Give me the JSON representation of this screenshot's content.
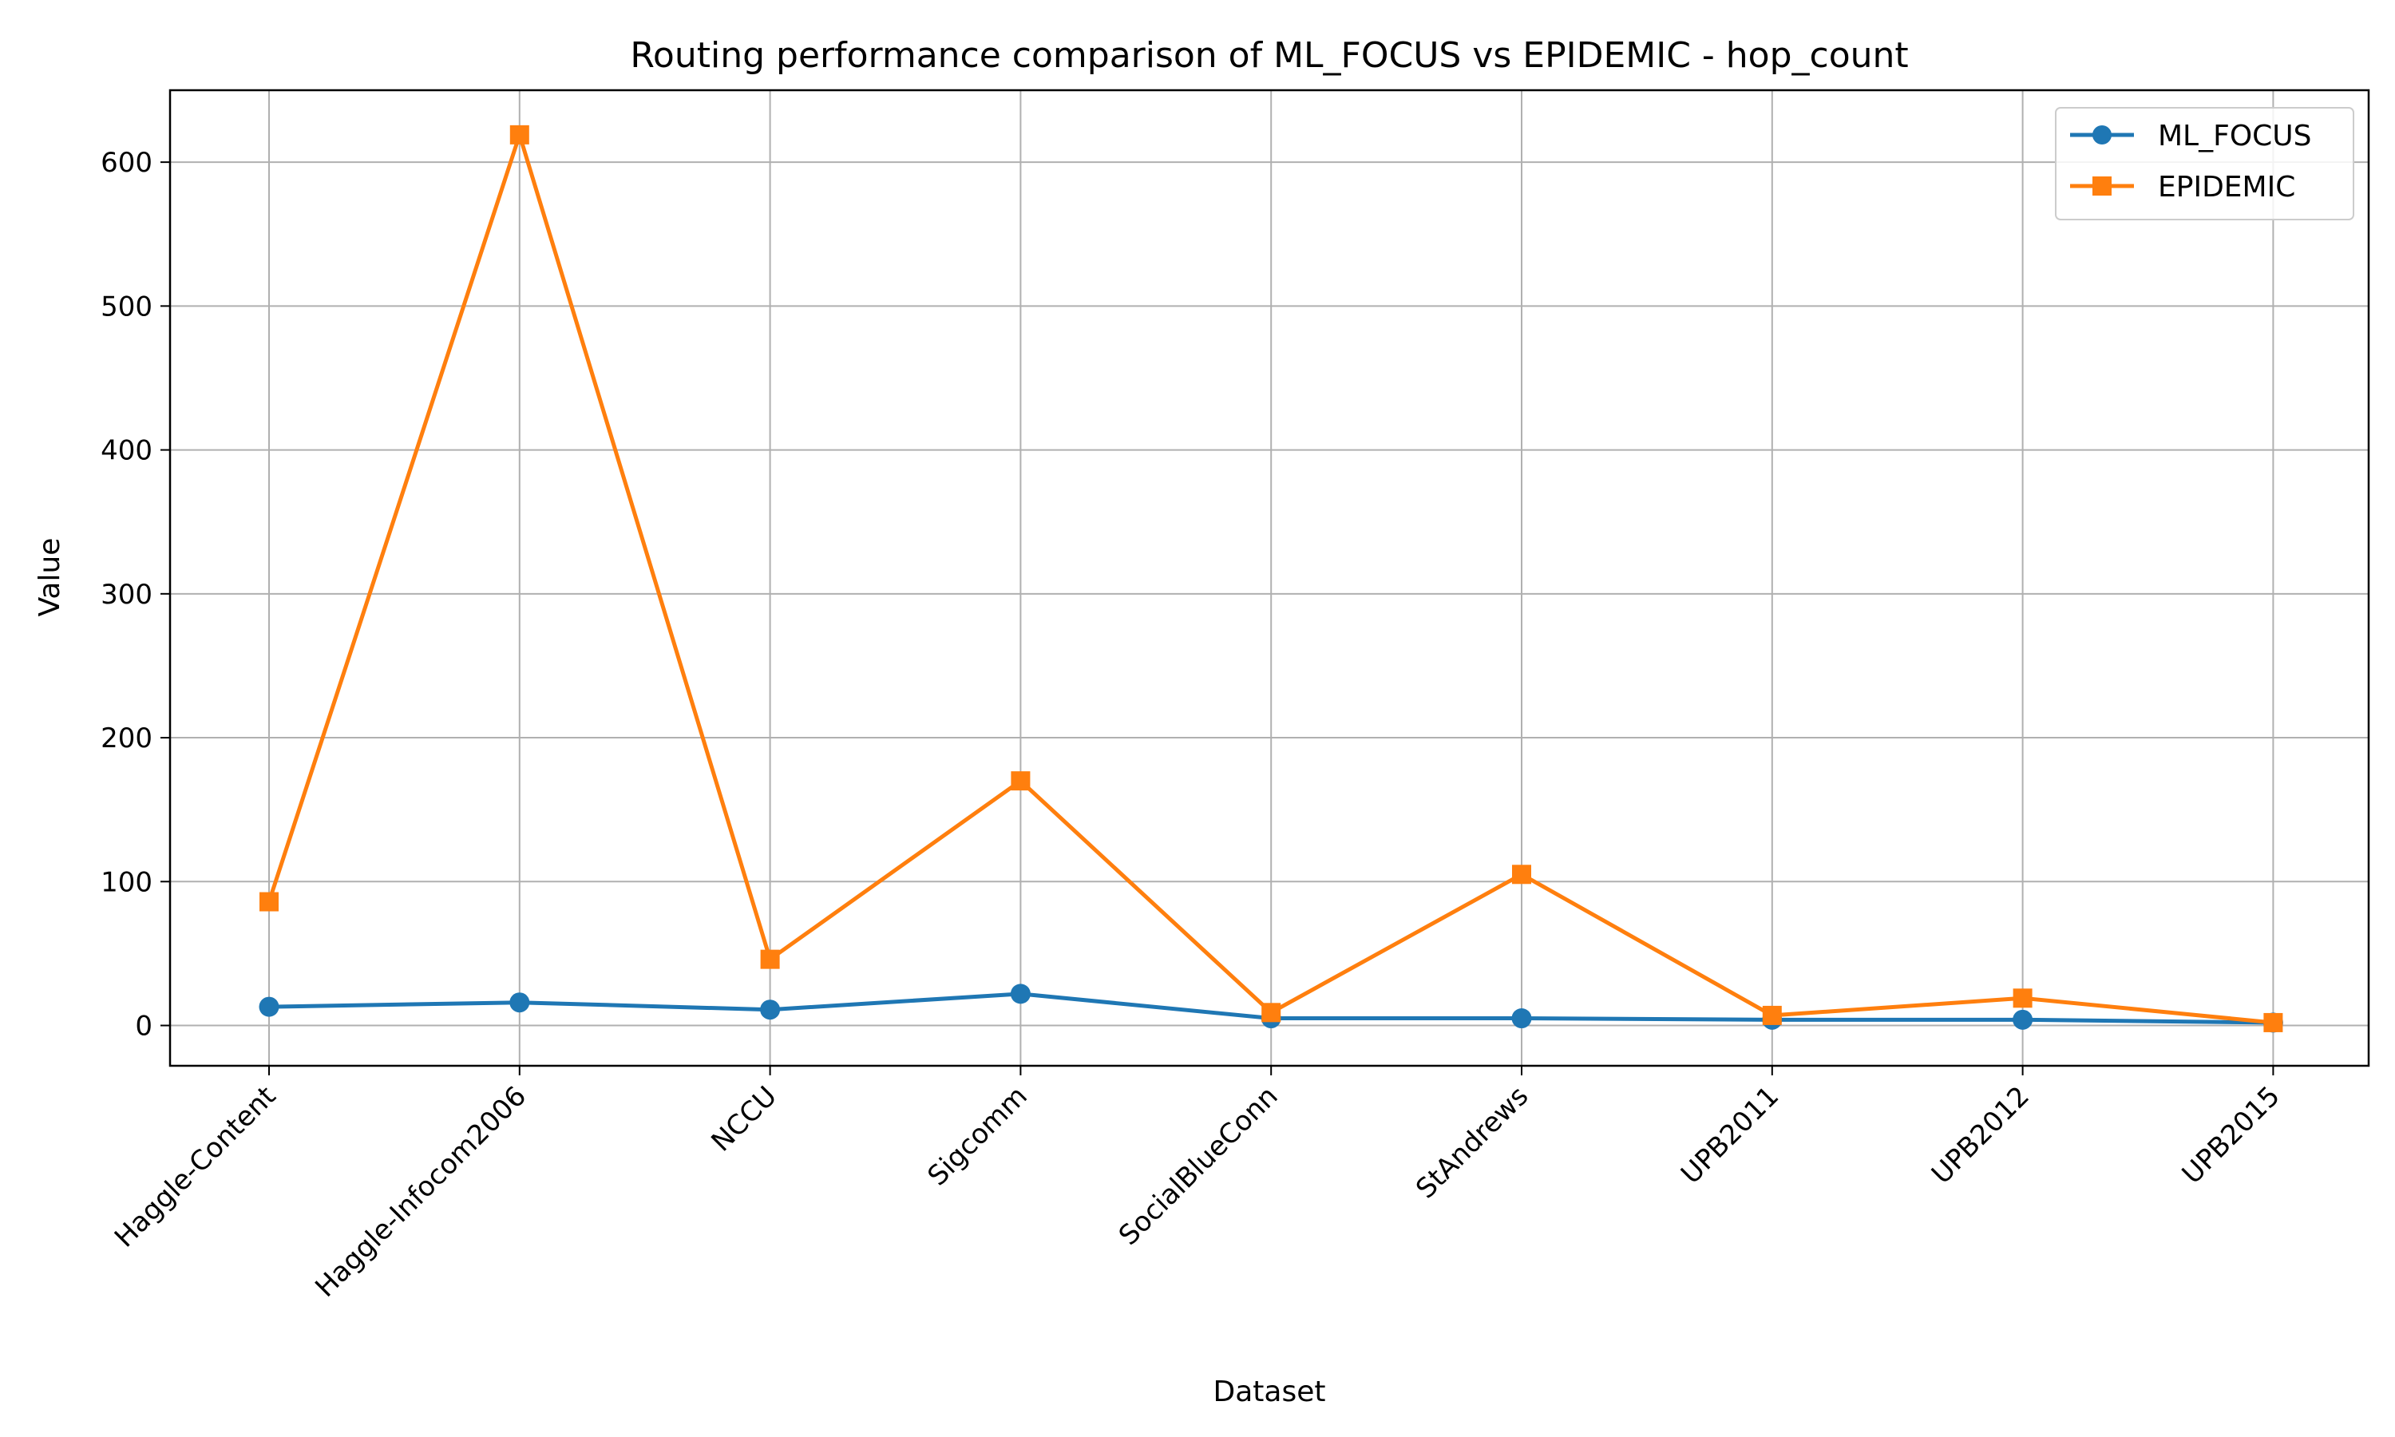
{
  "chart_data": {
    "type": "line",
    "title": "Routing performance comparison of ML_FOCUS vs EPIDEMIC - hop_count",
    "xlabel": "Dataset",
    "ylabel": "Value",
    "categories": [
      "Haggle-Content",
      "Haggle-Infocom2006",
      "NCCU",
      "Sigcomm",
      "SocialBlueConn",
      "StAndrews",
      "UPB2011",
      "UPB2012",
      "UPB2015"
    ],
    "ylim": [
      -28,
      650
    ],
    "yticks": [
      0,
      100,
      200,
      300,
      400,
      500,
      600
    ],
    "grid": true,
    "legend_position": "top-right",
    "series": [
      {
        "name": "ML_FOCUS",
        "color": "#1f77b4",
        "marker": "circle",
        "values": [
          13,
          16,
          11,
          22,
          5,
          5,
          4,
          4,
          2
        ]
      },
      {
        "name": "EPIDEMIC",
        "color": "#ff7f0e",
        "marker": "square",
        "values": [
          86,
          619,
          46,
          170,
          9,
          105,
          7,
          19,
          2
        ]
      }
    ]
  }
}
